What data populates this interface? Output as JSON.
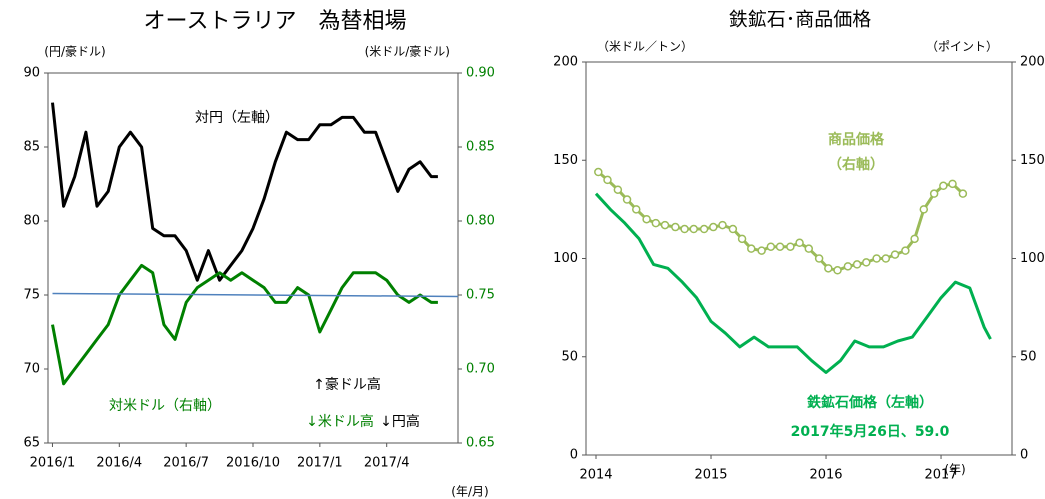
{
  "chart_data": [
    {
      "type": "line",
      "title": "オーストラリア　為替相場",
      "y_label": "(円/豪ドル)",
      "y2_label": "(米ドル/豪ドル)",
      "x_label": "(年/月)",
      "x": [
        0,
        0.5,
        1,
        1.5,
        2,
        2.5,
        3,
        3.5,
        4,
        4.5,
        5,
        5.5,
        6,
        6.5,
        7,
        7.5,
        8,
        8.5,
        9,
        9.5,
        10,
        10.5,
        11,
        11.5,
        12,
        12.5,
        13,
        13.5,
        14,
        14.5,
        15,
        15.5,
        16,
        16.5,
        17,
        17.3
      ],
      "xlim": [
        -0.2,
        18.2
      ],
      "xticks": [
        {
          "value": 0,
          "label": "2016/1"
        },
        {
          "value": 3,
          "label": "2016/4"
        },
        {
          "value": 6,
          "label": "2016/7"
        },
        {
          "value": 9,
          "label": "2016/10"
        },
        {
          "value": 12,
          "label": "2017/1"
        },
        {
          "value": 15,
          "label": "2017/4"
        }
      ],
      "ylim": [
        65,
        90
      ],
      "yticks": [
        65,
        70,
        75,
        80,
        85,
        90
      ],
      "y2lim": [
        0.65,
        0.9
      ],
      "y2ticks": [
        0.65,
        {
          "value": 0.7,
          "label": "0.70"
        },
        0.75,
        {
          "value": 0.8,
          "label": "0.80"
        },
        0.85,
        {
          "value": 0.9,
          "label": "0.90"
        }
      ],
      "y2_color": "#008000",
      "series": [
        {
          "name": "対円（左軸）",
          "color": "#000000",
          "values": [
            88,
            81,
            83,
            86,
            81,
            82,
            85,
            86,
            85,
            79.5,
            79,
            79,
            78,
            76,
            78,
            76,
            77,
            78,
            79.5,
            81.5,
            84,
            86,
            85.5,
            85.5,
            86.5,
            86.5,
            87,
            87,
            86,
            86,
            84,
            82,
            83.5,
            84,
            83,
            83
          ]
        },
        {
          "name": "対米ドル（右軸）",
          "color": "#008000",
          "axis": "y2",
          "values": [
            0.73,
            0.69,
            0.7,
            0.71,
            0.72,
            0.73,
            0.75,
            0.76,
            0.77,
            0.765,
            0.73,
            0.72,
            0.745,
            0.755,
            0.76,
            0.765,
            0.76,
            0.765,
            0.76,
            0.755,
            0.745,
            0.745,
            0.755,
            0.75,
            0.725,
            0.74,
            0.755,
            0.765,
            0.765,
            0.765,
            0.76,
            0.75,
            0.745,
            0.75,
            0.745,
            0.745
          ]
        },
        {
          "color": "#4f81bd",
          "axis": "y2",
          "x": [
            0,
            18.2
          ],
          "values": [
            0.751,
            0.749
          ]
        }
      ],
      "annotations": [
        {
          "text": "↑豪ドル高",
          "color": "#000000"
        },
        {
          "text": "↓米ドル高",
          "color": "#008000"
        },
        {
          "text": "↓円高",
          "color": "#000000"
        }
      ]
    },
    {
      "type": "line",
      "title": "鉄鉱石･商品価格",
      "y_label": "（米ドル／トン）",
      "y2_label": "（ポイント）",
      "x_label": "(年)",
      "xlim": [
        2013.913,
        2017.617
      ],
      "xticks": [
        2014,
        2015,
        2016,
        2017
      ],
      "ylim": [
        0,
        200
      ],
      "yticks": [
        0,
        50,
        100,
        150,
        200
      ],
      "y2lim": [
        0,
        200
      ],
      "y2ticks": [
        0,
        50,
        100,
        150,
        200
      ],
      "series": [
        {
          "name": "鉄鉱石価格（左軸）",
          "color": "#00b050",
          "x": [
            2014,
            2014.125,
            2014.25,
            2014.375,
            2014.5,
            2014.625,
            2014.75,
            2014.875,
            2015,
            2015.125,
            2015.25,
            2015.375,
            2015.5,
            2015.625,
            2015.75,
            2015.875,
            2016,
            2016.125,
            2016.25,
            2016.375,
            2016.5,
            2016.625,
            2016.75,
            2016.875,
            2017,
            2017.125,
            2017.25,
            2017.375,
            2017.43
          ],
          "values": [
            133,
            125,
            118,
            110,
            97,
            95,
            88,
            80,
            68,
            62,
            55,
            60,
            55,
            55,
            55,
            48,
            42,
            48,
            58,
            55,
            55,
            58,
            60,
            70,
            80,
            88,
            85,
            65,
            59
          ]
        },
        {
          "name": "商品価格",
          "color": "#9bbb59",
          "axis": "y2",
          "markers": true,
          "x": [
            2014.02,
            2014.1,
            2014.19,
            2014.27,
            2014.35,
            2014.44,
            2014.52,
            2014.6,
            2014.69,
            2014.77,
            2014.85,
            2014.94,
            2015.02,
            2015.1,
            2015.19,
            2015.27,
            2015.35,
            2015.44,
            2015.52,
            2015.6,
            2015.69,
            2015.77,
            2015.85,
            2015.94,
            2016.02,
            2016.1,
            2016.19,
            2016.27,
            2016.35,
            2016.44,
            2016.52,
            2016.6,
            2016.69,
            2016.77,
            2016.85,
            2016.94,
            2017.02,
            2017.1,
            2017.19
          ],
          "values": [
            144,
            140,
            135,
            130,
            125,
            120,
            118,
            117,
            116,
            115,
            115,
            115,
            116,
            117,
            115,
            110,
            105,
            104,
            106,
            106,
            106,
            108,
            105,
            100,
            95,
            94,
            96,
            97,
            98,
            100,
            100,
            102,
            104,
            110,
            125,
            133,
            137,
            138,
            133
          ]
        }
      ],
      "annotations": [
        {
          "text": "（右軸）",
          "color": "#9bbb59"
        },
        {
          "text": "2017年5月26日、59.0",
          "color": "#00b050"
        }
      ]
    }
  ]
}
